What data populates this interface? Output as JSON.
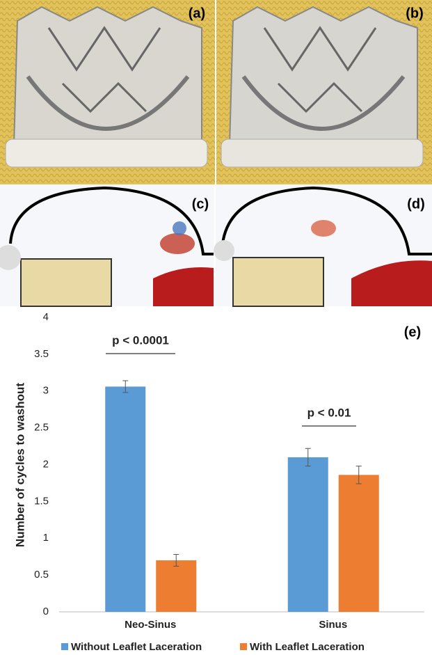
{
  "panel_labels": [
    "(a)",
    "(b)",
    "(c)",
    "(d)",
    "(e)"
  ],
  "chart_data": {
    "type": "bar",
    "y_label": "Number of cycles to washout",
    "categories": [
      "Neo-Sinus",
      "Sinus"
    ],
    "series": [
      {
        "name": "Without Leaflet Laceration",
        "color": "#5b9bd5",
        "values": [
          3.06,
          2.1
        ],
        "errors": [
          0.08,
          0.12
        ]
      },
      {
        "name": "With Leaflet Laceration",
        "color": "#ed7d31",
        "values": [
          0.7,
          1.86
        ],
        "errors": [
          0.08,
          0.12
        ]
      }
    ],
    "annotations": [
      "p < 0.0001",
      "p < 0.01"
    ],
    "ylim": [
      0,
      4
    ],
    "yticks": [
      0,
      0.5,
      1,
      1.5,
      2,
      2.5,
      3,
      3.5,
      4
    ],
    "grid": false,
    "legend": "bottom"
  }
}
